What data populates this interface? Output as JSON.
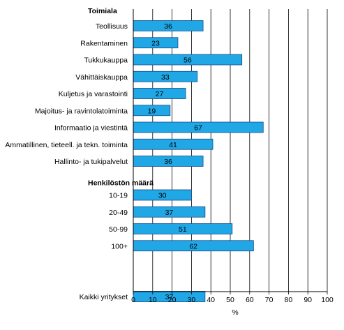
{
  "chart_data": {
    "type": "bar",
    "orientation": "horizontal",
    "groups": [
      {
        "title": "Toimiala",
        "items": [
          {
            "label": "Teollisuus",
            "value": 36
          },
          {
            "label": "Rakentaminen",
            "value": 23
          },
          {
            "label": "Tukkukauppa",
            "value": 56
          },
          {
            "label": "Vähittäiskauppa",
            "value": 33
          },
          {
            "label": "Kuljetus ja varastointi",
            "value": 27
          },
          {
            "label": "Majoitus- ja ravintolatoiminta",
            "value": 19
          },
          {
            "label": "Informaatio ja viestintä",
            "value": 67
          },
          {
            "label": "Ammatillinen, tieteell. ja tekn. toiminta",
            "value": 41
          },
          {
            "label": "Hallinto- ja tukipalvelut",
            "value": 36
          }
        ]
      },
      {
        "title": "Henkilöstön määrä",
        "items": [
          {
            "label": "10-19",
            "value": 30
          },
          {
            "label": "20-49",
            "value": 37
          },
          {
            "label": "50-99",
            "value": 51
          },
          {
            "label": "100+",
            "value": 62
          }
        ]
      },
      {
        "title": "",
        "items": [
          {
            "label": "Kaikki yritykset",
            "value": 37
          }
        ]
      }
    ],
    "xlabel": "%",
    "xlim": [
      0,
      100
    ],
    "xticks": [
      0,
      10,
      20,
      30,
      40,
      50,
      60,
      70,
      80,
      90,
      100
    ],
    "grid": "vertical",
    "legend": "none",
    "bar_color": "#1fa7e6",
    "bar_border": "#1a4a8c"
  }
}
